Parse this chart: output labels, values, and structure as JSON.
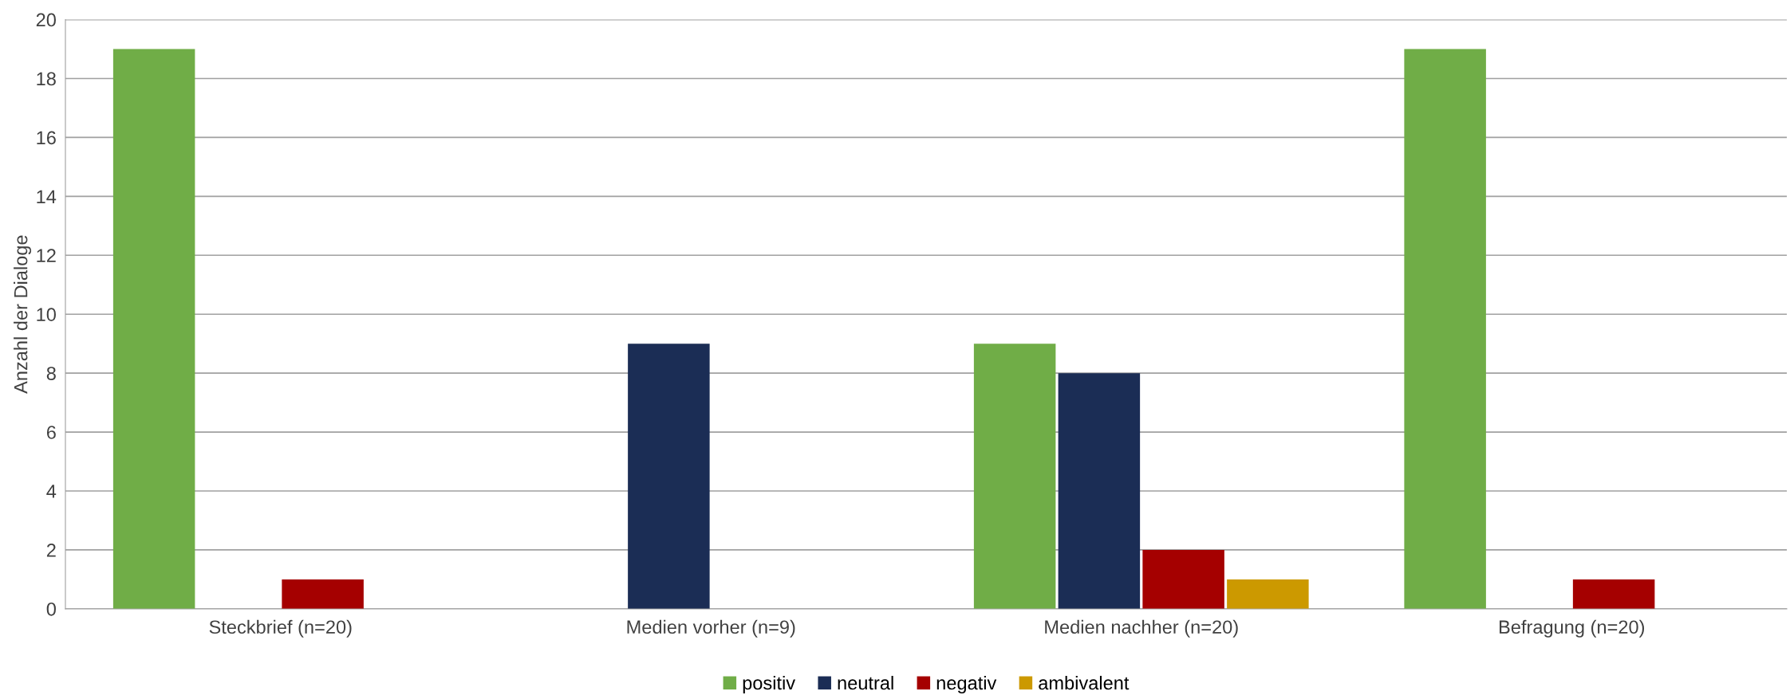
{
  "chart_data": {
    "type": "bar",
    "ylabel": "Anzahl der Dialoge",
    "categories": [
      "Steckbrief (n=20)",
      "Medien vorher (n=9)",
      "Medien nachher (n=20)",
      "Befragung (n=20)"
    ],
    "series": [
      {
        "name": "positiv",
        "color": "#70ad47",
        "values": [
          19,
          0,
          9,
          19
        ]
      },
      {
        "name": "neutral",
        "color": "#1b2d55",
        "values": [
          0,
          9,
          8,
          0
        ]
      },
      {
        "name": "negativ",
        "color": "#a50000",
        "values": [
          1,
          0,
          2,
          1
        ]
      },
      {
        "name": "ambivalent",
        "color": "#cc9900",
        "values": [
          0,
          0,
          1,
          0
        ]
      }
    ],
    "ylim": [
      0,
      20
    ],
    "yticks": [
      0,
      2,
      4,
      6,
      8,
      10,
      12,
      14,
      16,
      18,
      20
    ],
    "grid": "y",
    "legend": "bottom"
  }
}
